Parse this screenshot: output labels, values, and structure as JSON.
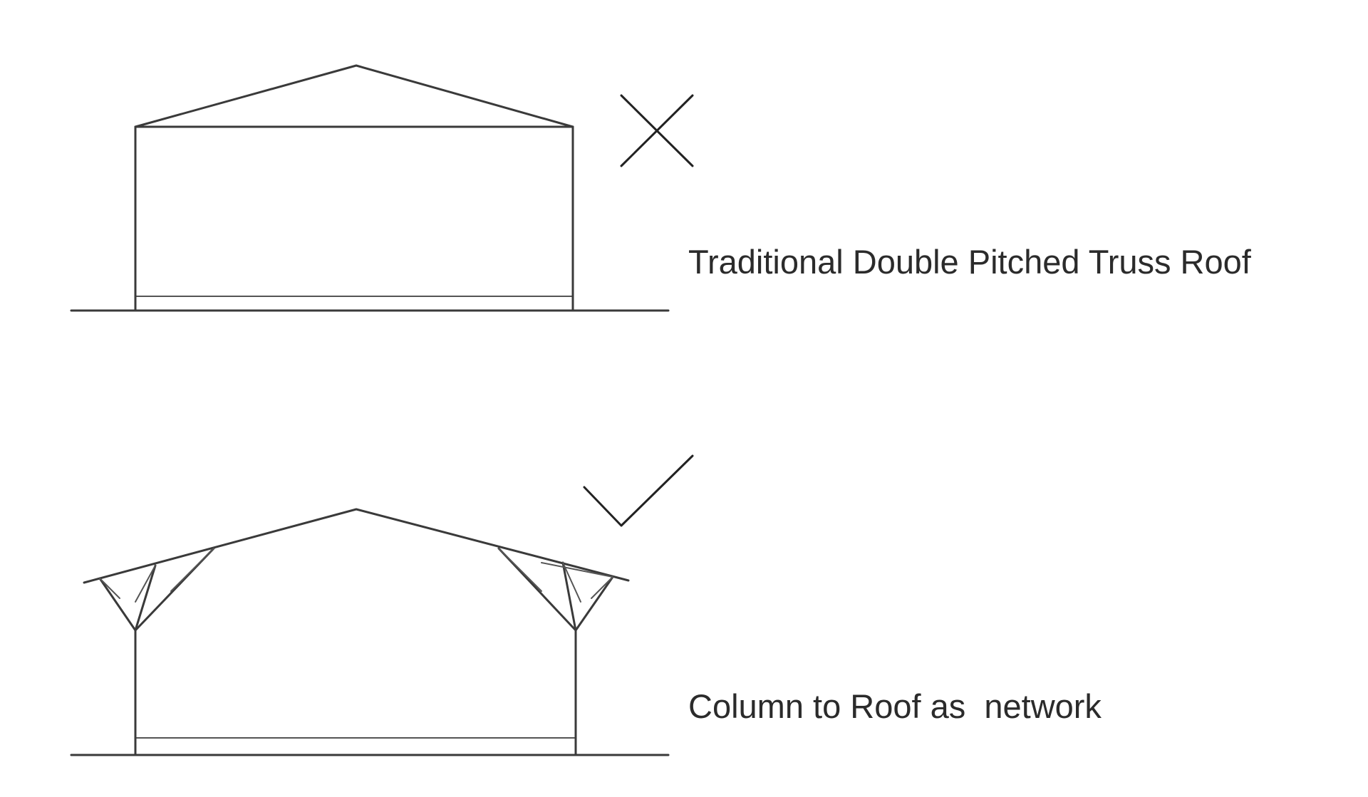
{
  "panels": [
    {
      "id": "traditional",
      "label": "Traditional Double Pitched Truss Roof",
      "mark": "cross-icon",
      "mark_color": "#222222"
    },
    {
      "id": "network",
      "label": "Column to Roof as  network",
      "mark": "checkmark-icon",
      "mark_color": "#222222"
    }
  ]
}
